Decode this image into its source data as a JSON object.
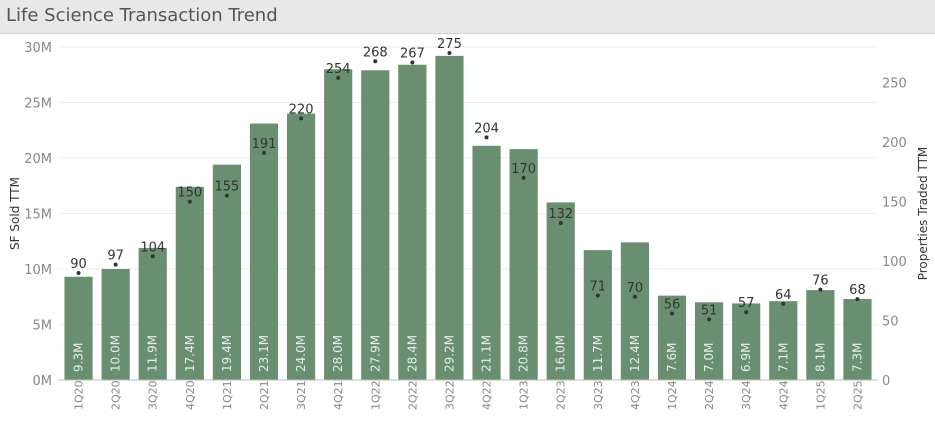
{
  "title": "Life Science Transaction Trend",
  "colors": {
    "bar": "#6a8f70",
    "dot": "#333333",
    "grid": "#eeeeee",
    "header_bg": "#e8e8e8"
  },
  "chart_data": {
    "type": "bar",
    "title": "Life Science Transaction Trend",
    "categories": [
      "1Q20",
      "2Q20",
      "3Q20",
      "4Q20",
      "1Q21",
      "2Q21",
      "3Q21",
      "4Q21",
      "1Q22",
      "2Q22",
      "3Q22",
      "4Q22",
      "1Q23",
      "2Q23",
      "3Q23",
      "4Q23",
      "1Q24",
      "2Q24",
      "3Q24",
      "4Q24",
      "1Q25",
      "2Q25"
    ],
    "series": [
      {
        "name": "SF Sold TTM",
        "axis": "left",
        "values": [
          9.3,
          10.0,
          11.9,
          17.4,
          19.4,
          23.1,
          24.0,
          28.0,
          27.9,
          28.4,
          29.2,
          21.1,
          20.8,
          16.0,
          11.7,
          12.4,
          7.6,
          7.0,
          6.9,
          7.1,
          8.1,
          7.3
        ],
        "labels": [
          "9.3M",
          "10.0M",
          "11.9M",
          "17.4M",
          "19.4M",
          "23.1M",
          "24.0M",
          "28.0M",
          "27.9M",
          "28.4M",
          "29.2M",
          "21.1M",
          "20.8M",
          "16.0M",
          "11.7M",
          "12.4M",
          "7.6M",
          "7.0M",
          "6.9M",
          "7.1M",
          "8.1M",
          "7.3M"
        ]
      },
      {
        "name": "Properties Traded TTM",
        "axis": "right",
        "type": "scatter",
        "values": [
          90,
          97,
          104,
          150,
          155,
          191,
          220,
          254,
          268,
          267,
          275,
          204,
          170,
          132,
          71,
          70,
          56,
          51,
          57,
          64,
          76,
          68
        ]
      }
    ],
    "ylabel": "SF Sold TTM",
    "ylabel_right": "Properties Traded TTM",
    "ylim": [
      0,
      30
    ],
    "ylim_right": [
      0,
      280
    ],
    "yticks": [
      "0M",
      "5M",
      "10M",
      "15M",
      "20M",
      "25M",
      "30M"
    ],
    "yticks_right": [
      "0",
      "50",
      "100",
      "150",
      "200",
      "250"
    ],
    "grid": true
  }
}
